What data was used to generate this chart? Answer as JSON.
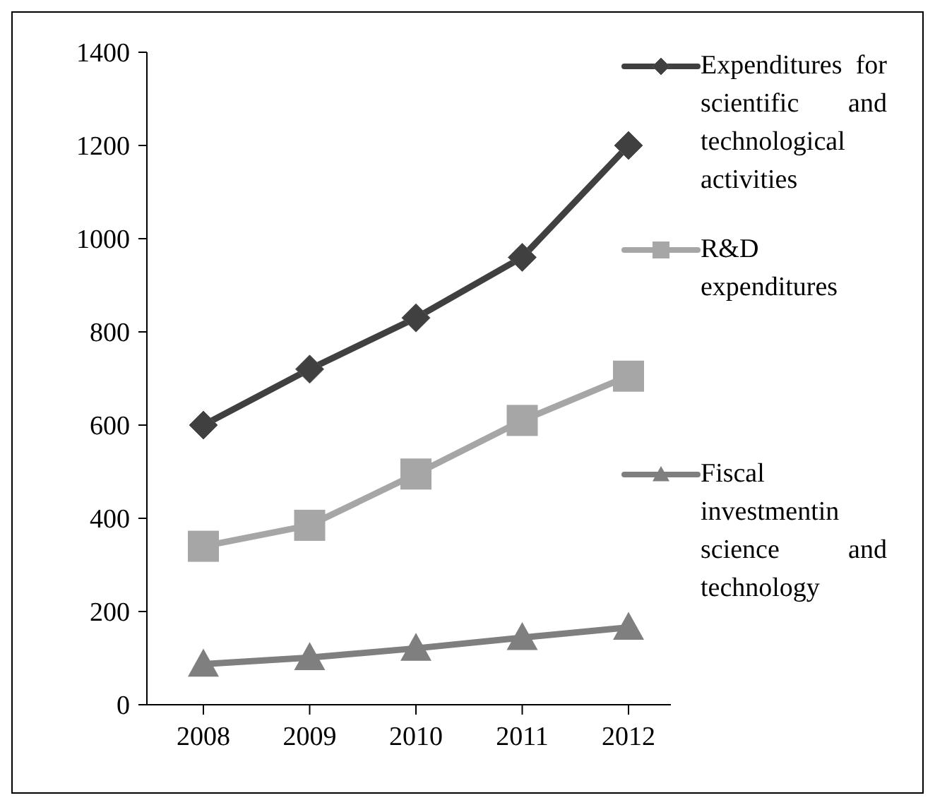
{
  "chart_data": {
    "type": "line",
    "categories": [
      "2008",
      "2009",
      "2010",
      "2011",
      "2012"
    ],
    "series": [
      {
        "name": "Expenditures for scientific and technological activities",
        "color": "#404040",
        "marker": "diamond",
        "values": [
          600,
          720,
          830,
          960,
          1200
        ]
      },
      {
        "name": "R&D expenditures",
        "color": "#a6a6a6",
        "marker": "square",
        "values": [
          340,
          385,
          495,
          610,
          705
        ]
      },
      {
        "name": "Fiscal investmentin science and technology",
        "color": "#7f7f7f",
        "marker": "triangle",
        "values": [
          87,
          101,
          121,
          144,
          166
        ]
      }
    ],
    "ylim": [
      0,
      1400
    ],
    "yticks": [
      0,
      200,
      400,
      600,
      800,
      1000,
      1200,
      1400
    ],
    "grid": false,
    "legend": "right"
  }
}
